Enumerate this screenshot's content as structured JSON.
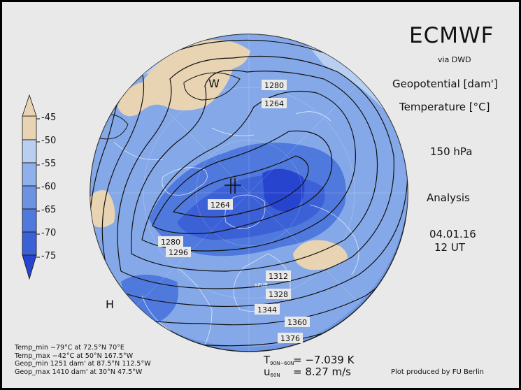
{
  "header": {
    "title": "ECMWF",
    "via": "via DWD",
    "field1": "Geopotential [dam']",
    "field2": "Temperature [°C]",
    "level": "150 hPa",
    "kind": "Analysis",
    "date": "04.01.16",
    "time": "12 UT"
  },
  "colorbar": {
    "labels": [
      "-45",
      "-50",
      "-55",
      "-60",
      "-65",
      "-70",
      "-75"
    ],
    "colors": [
      "#e8d3b3",
      "#b9cff0",
      "#8fb0ea",
      "#6b93e2",
      "#4f79dc",
      "#3c60d6",
      "#2744cf"
    ]
  },
  "map": {
    "contour_labels": [
      "1280",
      "1264",
      "1264",
      "1280",
      "1296",
      "1312",
      "1328",
      "1344",
      "1360",
      "1376"
    ],
    "markers": [
      "W",
      "H",
      "+FUB"
    ]
  },
  "stats": [
    "Temp_min −79°C at 72.5°N 70°E",
    "Temp_max −42°C at 50°N 167.5°W",
    "Geop_min 1251 dam' at 87.5°N 112.5°W",
    "Geop_max 1410 dam' at 30°N 47.5°W"
  ],
  "diagnostics": {
    "t_symbol": "T",
    "t_sub": "90N−60N",
    "t_value": "=  −7.039 K",
    "u_symbol": "u",
    "u_sub": "60N",
    "u_value": "=  8.27 m/s"
  },
  "credit": "Plot produced by FU Berlin"
}
